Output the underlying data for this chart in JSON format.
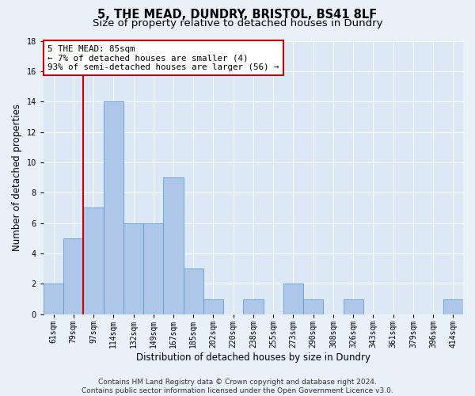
{
  "title": "5, THE MEAD, DUNDRY, BRISTOL, BS41 8LF",
  "subtitle": "Size of property relative to detached houses in Dundry",
  "xlabel": "Distribution of detached houses by size in Dundry",
  "ylabel": "Number of detached properties",
  "footer_line1": "Contains HM Land Registry data © Crown copyright and database right 2024.",
  "footer_line2": "Contains public sector information licensed under the Open Government Licence v3.0.",
  "bar_labels": [
    "61sqm",
    "79sqm",
    "97sqm",
    "114sqm",
    "132sqm",
    "149sqm",
    "167sqm",
    "185sqm",
    "202sqm",
    "220sqm",
    "238sqm",
    "255sqm",
    "273sqm",
    "290sqm",
    "308sqm",
    "326sqm",
    "343sqm",
    "361sqm",
    "379sqm",
    "396sqm",
    "414sqm"
  ],
  "bar_values": [
    2,
    5,
    7,
    14,
    6,
    6,
    9,
    3,
    1,
    0,
    1,
    0,
    2,
    1,
    0,
    1,
    0,
    0,
    0,
    0,
    1
  ],
  "bar_color": "#aec6e8",
  "bar_edge_color": "#5a9fd4",
  "vline_x": 1.5,
  "vline_color": "#cc0000",
  "annotation_text": "5 THE MEAD: 85sqm\n← 7% of detached houses are smaller (4)\n93% of semi-detached houses are larger (56) →",
  "annotation_box_color": "#ffffff",
  "annotation_box_edge_color": "#cc0000",
  "ylim": [
    0,
    18
  ],
  "yticks": [
    0,
    2,
    4,
    6,
    8,
    10,
    12,
    14,
    16,
    18
  ],
  "bg_color": "#e8f0f8",
  "plot_bg_color": "#dce8f5",
  "grid_color": "#ffffff",
  "title_fontsize": 10.5,
  "subtitle_fontsize": 9.5,
  "tick_fontsize": 7,
  "ylabel_fontsize": 8.5,
  "xlabel_fontsize": 8.5,
  "annotation_fontsize": 7.8,
  "footer_fontsize": 6.5
}
